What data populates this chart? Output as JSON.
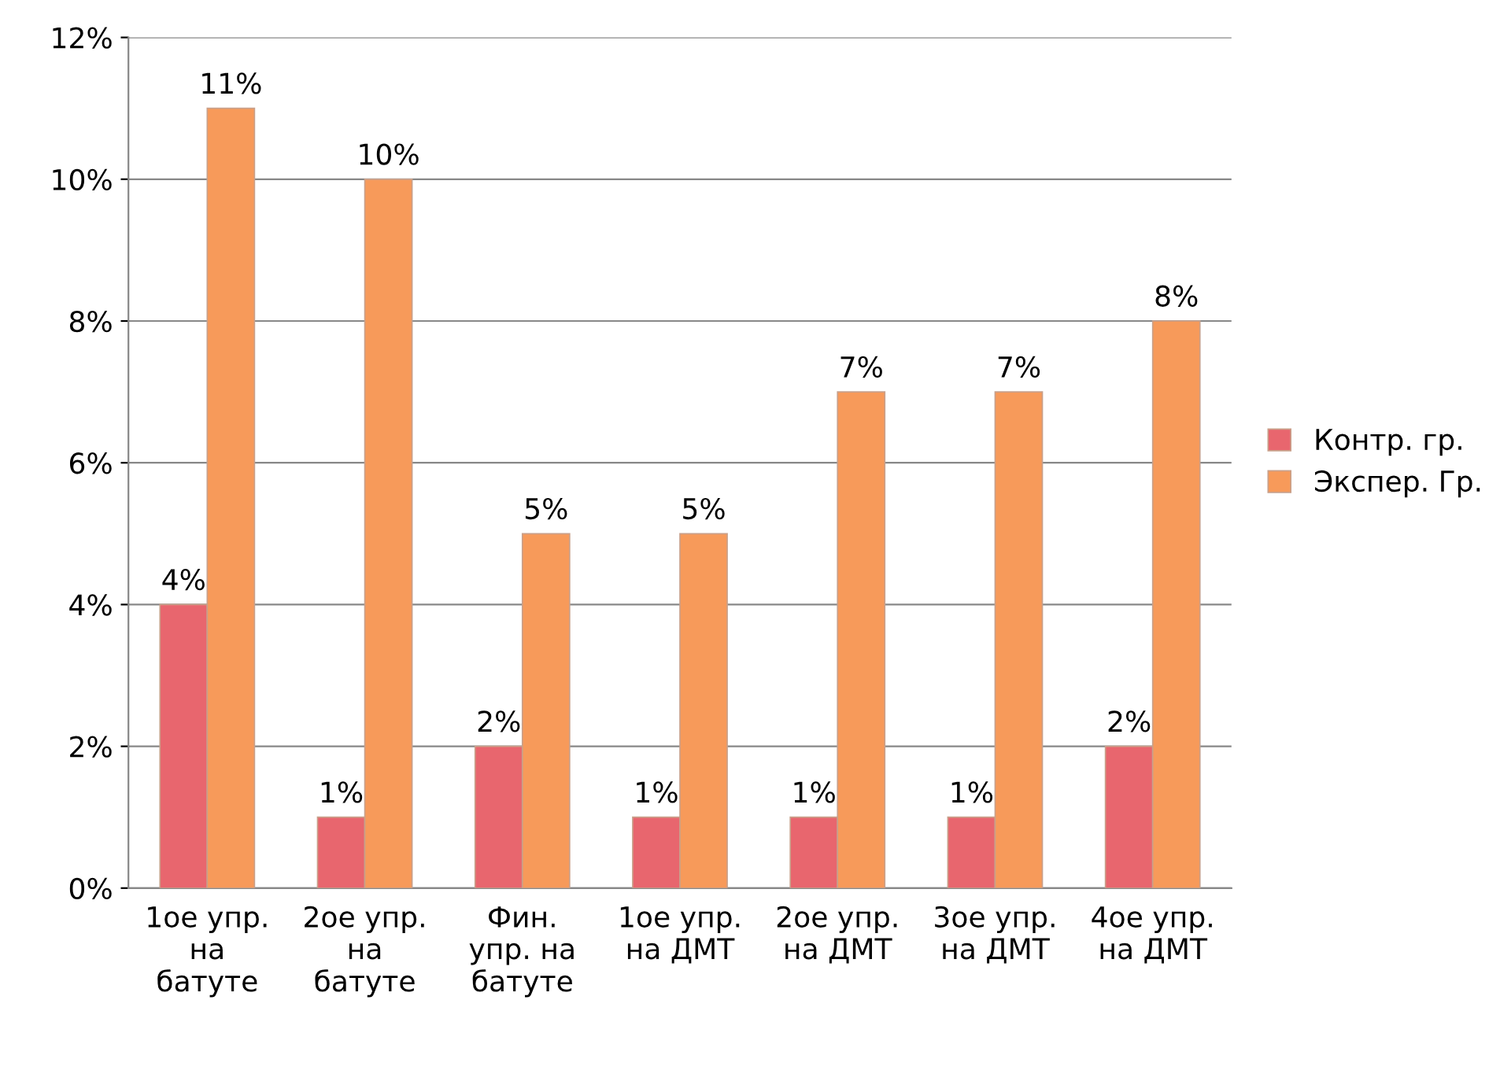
{
  "chart_data": {
    "type": "bar",
    "categories": [
      "1ое упр.\nна\nбатуте",
      "2ое упр.\nна\nбатуте",
      "Фин.\nупр. на\nбатуте",
      "1ое упр.\nна ДМТ",
      "2ое упр.\nна ДМТ",
      "3ое упр.\nна ДМТ",
      "4ое упр.\nна ДМТ"
    ],
    "series": [
      {
        "name": "Контр. гр.",
        "color": "#e8666e",
        "values": [
          4,
          1,
          2,
          1,
          1,
          1,
          2
        ],
        "value_labels": [
          "4%",
          "1%",
          "2%",
          "1%",
          "1%",
          "1%",
          "2%"
        ]
      },
      {
        "name": "Экспер. Гр.",
        "color": "#f79a5a",
        "values": [
          11,
          10,
          5,
          5,
          7,
          7,
          8
        ],
        "value_labels": [
          "11%",
          "10%",
          "5%",
          "5%",
          "7%",
          "7%",
          "8%"
        ]
      }
    ],
    "ylim": [
      0,
      12
    ],
    "yticks": [
      {
        "value": 0,
        "label": "0%"
      },
      {
        "value": 2,
        "label": "2%"
      },
      {
        "value": 4,
        "label": "4%"
      },
      {
        "value": 6,
        "label": "6%"
      },
      {
        "value": 8,
        "label": "8%"
      },
      {
        "value": 10,
        "label": "10%"
      },
      {
        "value": 12,
        "label": "12%"
      }
    ],
    "grid": "y",
    "legend": "right"
  }
}
